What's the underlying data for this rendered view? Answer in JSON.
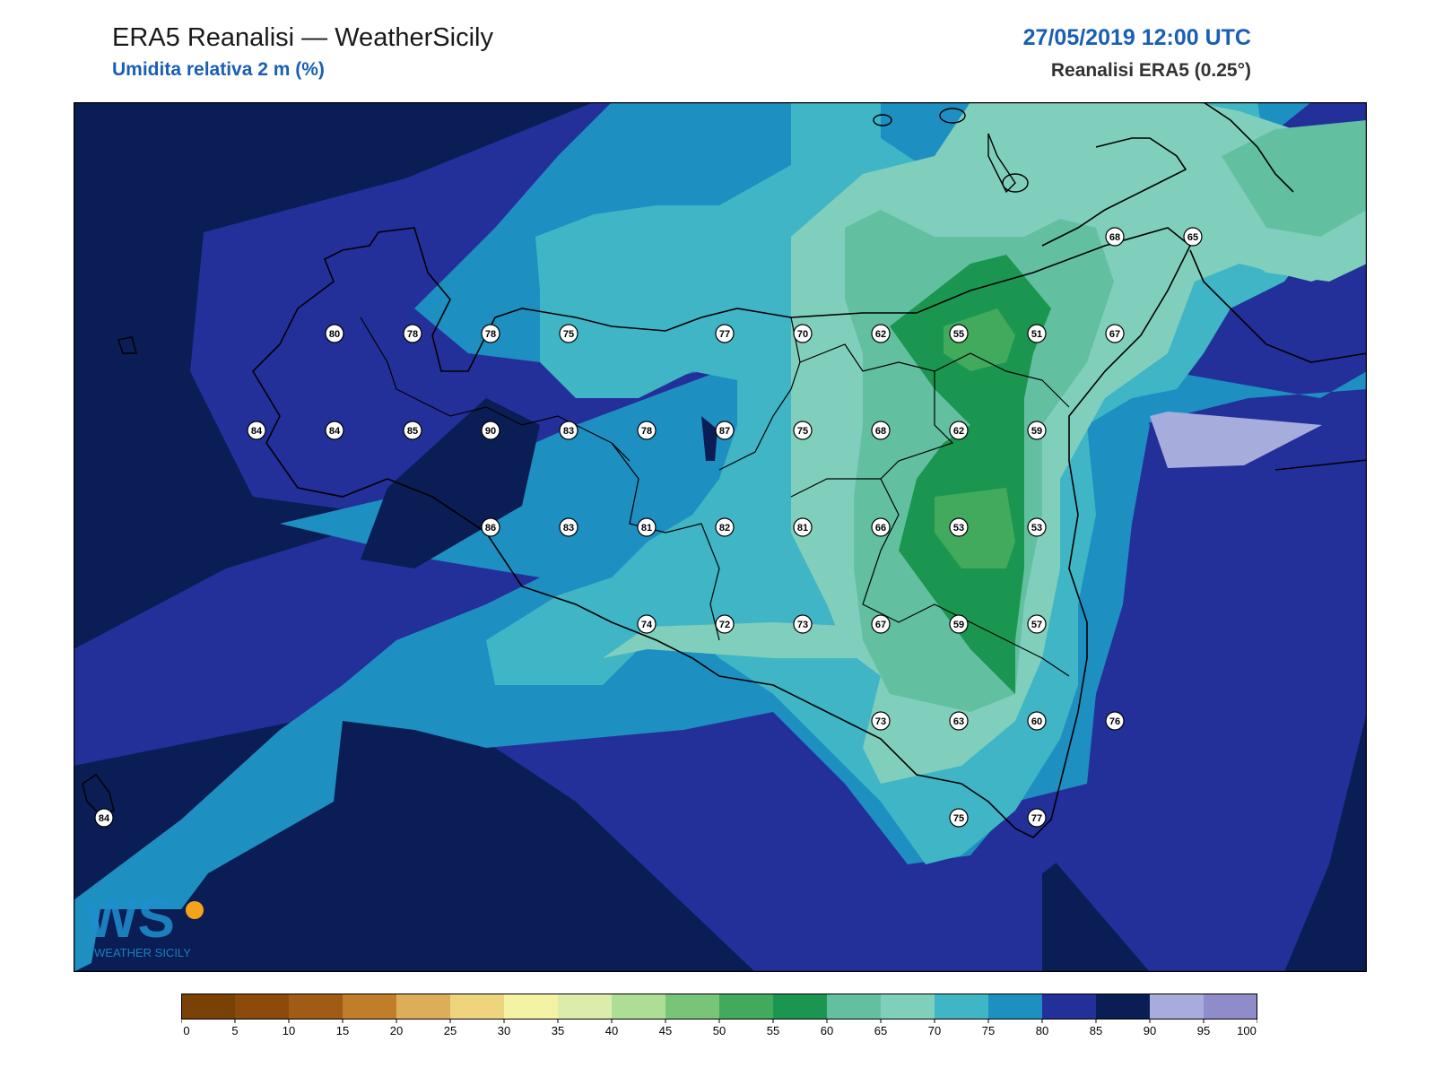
{
  "header": {
    "title": "ERA5 Reanalisi — WeatherSicily",
    "subtitle": "Umidita relativa 2 m (%)",
    "datetime": "27/05/2019 12:00 UTC",
    "source": "Reanalisi ERA5 (0.25°)"
  },
  "logo": {
    "letters": "WS",
    "name": "WEATHER SICILY"
  },
  "colorbar": {
    "ticks": [
      "0",
      "5",
      "10",
      "15",
      "20",
      "25",
      "30",
      "35",
      "40",
      "45",
      "50",
      "55",
      "60",
      "65",
      "70",
      "75",
      "80",
      "85",
      "90",
      "95",
      "100"
    ],
    "colors": [
      "#7a4106",
      "#8c4b0b",
      "#a05c14",
      "#c07d2a",
      "#dcae5a",
      "#efd47e",
      "#f4f3a4",
      "#dcedab",
      "#aede93",
      "#78c57a",
      "#41aa5c",
      "#1b9650",
      "#62c0a1",
      "#80cfbc",
      "#40b5c5",
      "#1e8fc1",
      "#23309a",
      "#0a1d55",
      "#a6acdc",
      "#8f8ccc"
    ]
  },
  "stations": [
    {
      "v": "68",
      "c": [
        13,
        3
      ]
    },
    {
      "v": "65",
      "c": [
        14,
        3
      ]
    },
    {
      "v": "80",
      "c": [
        3,
        4
      ]
    },
    {
      "v": "78",
      "c": [
        4,
        4
      ]
    },
    {
      "v": "78",
      "c": [
        5,
        4
      ]
    },
    {
      "v": "75",
      "c": [
        6,
        4
      ]
    },
    {
      "v": "77",
      "c": [
        8,
        4
      ]
    },
    {
      "v": "70",
      "c": [
        9,
        4
      ]
    },
    {
      "v": "62",
      "c": [
        10,
        4
      ]
    },
    {
      "v": "55",
      "c": [
        11,
        4
      ]
    },
    {
      "v": "51",
      "c": [
        12,
        4
      ]
    },
    {
      "v": "67",
      "c": [
        13,
        4
      ]
    },
    {
      "v": "84",
      "c": [
        2,
        5
      ]
    },
    {
      "v": "84",
      "c": [
        3,
        5
      ]
    },
    {
      "v": "85",
      "c": [
        4,
        5
      ]
    },
    {
      "v": "90",
      "c": [
        5,
        5
      ]
    },
    {
      "v": "83",
      "c": [
        6,
        5
      ]
    },
    {
      "v": "78",
      "c": [
        7,
        5
      ]
    },
    {
      "v": "87",
      "c": [
        8,
        5
      ]
    },
    {
      "v": "75",
      "c": [
        9,
        5
      ]
    },
    {
      "v": "68",
      "c": [
        10,
        5
      ]
    },
    {
      "v": "62",
      "c": [
        11,
        5
      ]
    },
    {
      "v": "59",
      "c": [
        12,
        5
      ]
    },
    {
      "v": "86",
      "c": [
        5,
        6
      ]
    },
    {
      "v": "83",
      "c": [
        6,
        6
      ]
    },
    {
      "v": "81",
      "c": [
        7,
        6
      ]
    },
    {
      "v": "82",
      "c": [
        8,
        6
      ]
    },
    {
      "v": "81",
      "c": [
        9,
        6
      ]
    },
    {
      "v": "66",
      "c": [
        10,
        6
      ]
    },
    {
      "v": "53",
      "c": [
        11,
        6
      ]
    },
    {
      "v": "53",
      "c": [
        12,
        6
      ]
    },
    {
      "v": "74",
      "c": [
        7,
        7
      ]
    },
    {
      "v": "72",
      "c": [
        8,
        7
      ]
    },
    {
      "v": "73",
      "c": [
        9,
        7
      ]
    },
    {
      "v": "67",
      "c": [
        10,
        7
      ]
    },
    {
      "v": "59",
      "c": [
        11,
        7
      ]
    },
    {
      "v": "57",
      "c": [
        12,
        7
      ]
    },
    {
      "v": "73",
      "c": [
        10,
        8
      ]
    },
    {
      "v": "63",
      "c": [
        11,
        8
      ]
    },
    {
      "v": "60",
      "c": [
        12,
        8
      ]
    },
    {
      "v": "76",
      "c": [
        13,
        8
      ]
    },
    {
      "v": "84",
      "c": [
        -1,
        9
      ]
    },
    {
      "v": "75",
      "c": [
        11,
        9
      ]
    },
    {
      "v": "77",
      "c": [
        12,
        9
      ]
    }
  ]
}
